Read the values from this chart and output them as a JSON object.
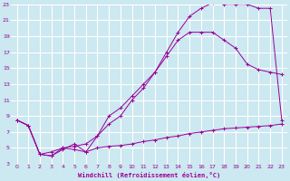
{
  "xlabel": "Windchill (Refroidissement éolien,°C)",
  "bg_color": "#cce8f0",
  "grid_color": "#ffffff",
  "line_color": "#990099",
  "xlim": [
    -0.5,
    23.5
  ],
  "ylim": [
    3,
    23
  ],
  "xticks": [
    0,
    1,
    2,
    3,
    4,
    5,
    6,
    7,
    8,
    9,
    10,
    11,
    12,
    13,
    14,
    15,
    16,
    17,
    18,
    19,
    20,
    21,
    22,
    23
  ],
  "yticks": [
    3,
    5,
    7,
    9,
    11,
    13,
    15,
    17,
    19,
    21,
    23
  ],
  "line1_x": [
    0,
    1,
    2,
    3,
    4,
    5,
    6,
    7,
    8,
    9,
    10,
    11,
    12,
    13,
    14,
    15,
    16,
    17,
    18,
    19,
    20,
    21,
    22,
    23
  ],
  "line1_y": [
    8.5,
    7.8,
    4.2,
    4.5,
    5.0,
    5.2,
    5.5,
    6.5,
    9.0,
    10.0,
    11.5,
    13.0,
    14.5,
    16.5,
    18.5,
    19.5,
    19.5,
    19.5,
    18.5,
    17.5,
    15.5,
    14.8,
    14.5,
    14.2
  ],
  "line2_x": [
    0,
    1,
    2,
    3,
    4,
    5,
    6,
    7,
    8,
    9,
    10,
    11,
    12,
    13,
    14,
    15,
    16,
    17,
    18,
    19,
    20,
    21,
    22,
    23
  ],
  "line2_y": [
    8.5,
    7.8,
    4.2,
    4.0,
    4.8,
    5.5,
    4.5,
    6.5,
    8.0,
    9.0,
    11.0,
    12.5,
    14.5,
    17.0,
    19.5,
    21.5,
    22.5,
    23.2,
    23.0,
    23.0,
    23.0,
    22.5,
    22.5,
    8.5
  ],
  "line3_x": [
    0,
    1,
    2,
    3,
    4,
    5,
    6,
    7,
    8,
    9,
    10,
    11,
    12,
    13,
    14,
    15,
    16,
    17,
    18,
    19,
    20,
    21,
    22,
    23
  ],
  "line3_y": [
    8.5,
    7.8,
    4.2,
    4.0,
    5.0,
    4.8,
    4.5,
    5.0,
    5.2,
    5.3,
    5.5,
    5.8,
    6.0,
    6.3,
    6.5,
    6.8,
    7.0,
    7.2,
    7.4,
    7.5,
    7.6,
    7.7,
    7.8,
    8.0
  ]
}
